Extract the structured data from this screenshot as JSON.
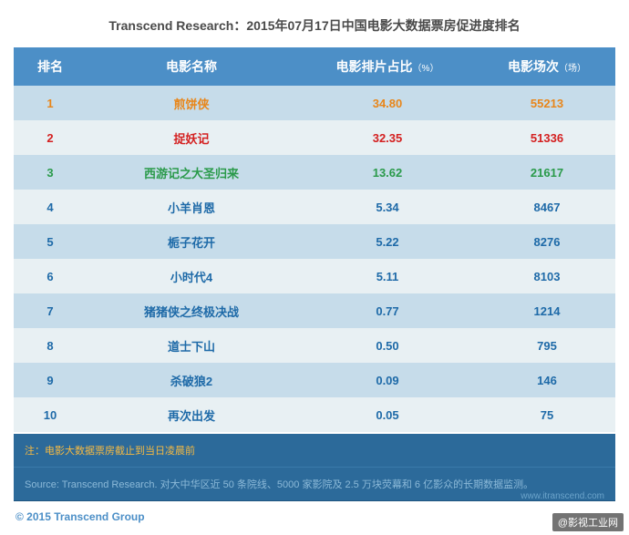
{
  "title": "Transcend Research：2015年07月17日中国电影大数据票房促进度排名",
  "columns": {
    "rank": "排名",
    "name": "电影名称",
    "pct": "电影排片占比",
    "pct_unit": "（%）",
    "sessions": "电影场次",
    "sessions_unit": "（场）"
  },
  "row_colors": {
    "rank1": "#e8861a",
    "rank2": "#d42020",
    "rank3": "#2a9a4a",
    "default": "#1e6aa8"
  },
  "rows": [
    {
      "rank": "1",
      "name": "煎饼侠",
      "pct": "34.80",
      "sessions": "55213",
      "color": "#e8861a"
    },
    {
      "rank": "2",
      "name": "捉妖记",
      "pct": "32.35",
      "sessions": "51336",
      "color": "#d42020"
    },
    {
      "rank": "3",
      "name": "西游记之大圣归来",
      "pct": "13.62",
      "sessions": "21617",
      "color": "#2a9a4a"
    },
    {
      "rank": "4",
      "name": "小羊肖恩",
      "pct": "5.34",
      "sessions": "8467",
      "color": "#1e6aa8"
    },
    {
      "rank": "5",
      "name": "栀子花开",
      "pct": "5.22",
      "sessions": "8276",
      "color": "#1e6aa8"
    },
    {
      "rank": "6",
      "name": "小时代4",
      "pct": "5.11",
      "sessions": "8103",
      "color": "#1e6aa8"
    },
    {
      "rank": "7",
      "name": "猪猪侠之终极决战",
      "pct": "0.77",
      "sessions": "1214",
      "color": "#1e6aa8"
    },
    {
      "rank": "8",
      "name": "道士下山",
      "pct": "0.50",
      "sessions": "795",
      "color": "#1e6aa8"
    },
    {
      "rank": "9",
      "name": "杀破狼2",
      "pct": "0.09",
      "sessions": "146",
      "color": "#1e6aa8"
    },
    {
      "rank": "10",
      "name": "再次出发",
      "pct": "0.05",
      "sessions": "75",
      "color": "#1e6aa8"
    }
  ],
  "note": "注：电影大数据票房截止到当日凌晨前",
  "source": "Source: Transcend Research. 对大中华区近 50 条院线、5000 家影院及 2.5 万块荧幕和 6 亿影众的长期数据监测。",
  "source_url": "www.itranscend.com",
  "copyright": "© 2015 Transcend Group",
  "watermark": "@影视工业网"
}
